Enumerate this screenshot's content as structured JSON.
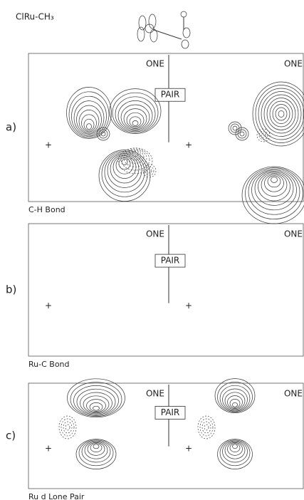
{
  "header": {
    "formula": "ClRu-CH₃"
  },
  "panels": [
    {
      "label": "a)",
      "left_tag": "ONE",
      "center_tag": "PAIR",
      "right_tag": "ONE",
      "caption": "C-H Bond"
    },
    {
      "label": "b)",
      "left_tag": "ONE",
      "center_tag": "PAIR",
      "right_tag": "ONE",
      "caption": "Ru-C Bond"
    },
    {
      "label": "c)",
      "left_tag": "ONE",
      "center_tag": "PAIR",
      "right_tag": "ONE",
      "caption": "Ru d Lone Pair"
    }
  ]
}
